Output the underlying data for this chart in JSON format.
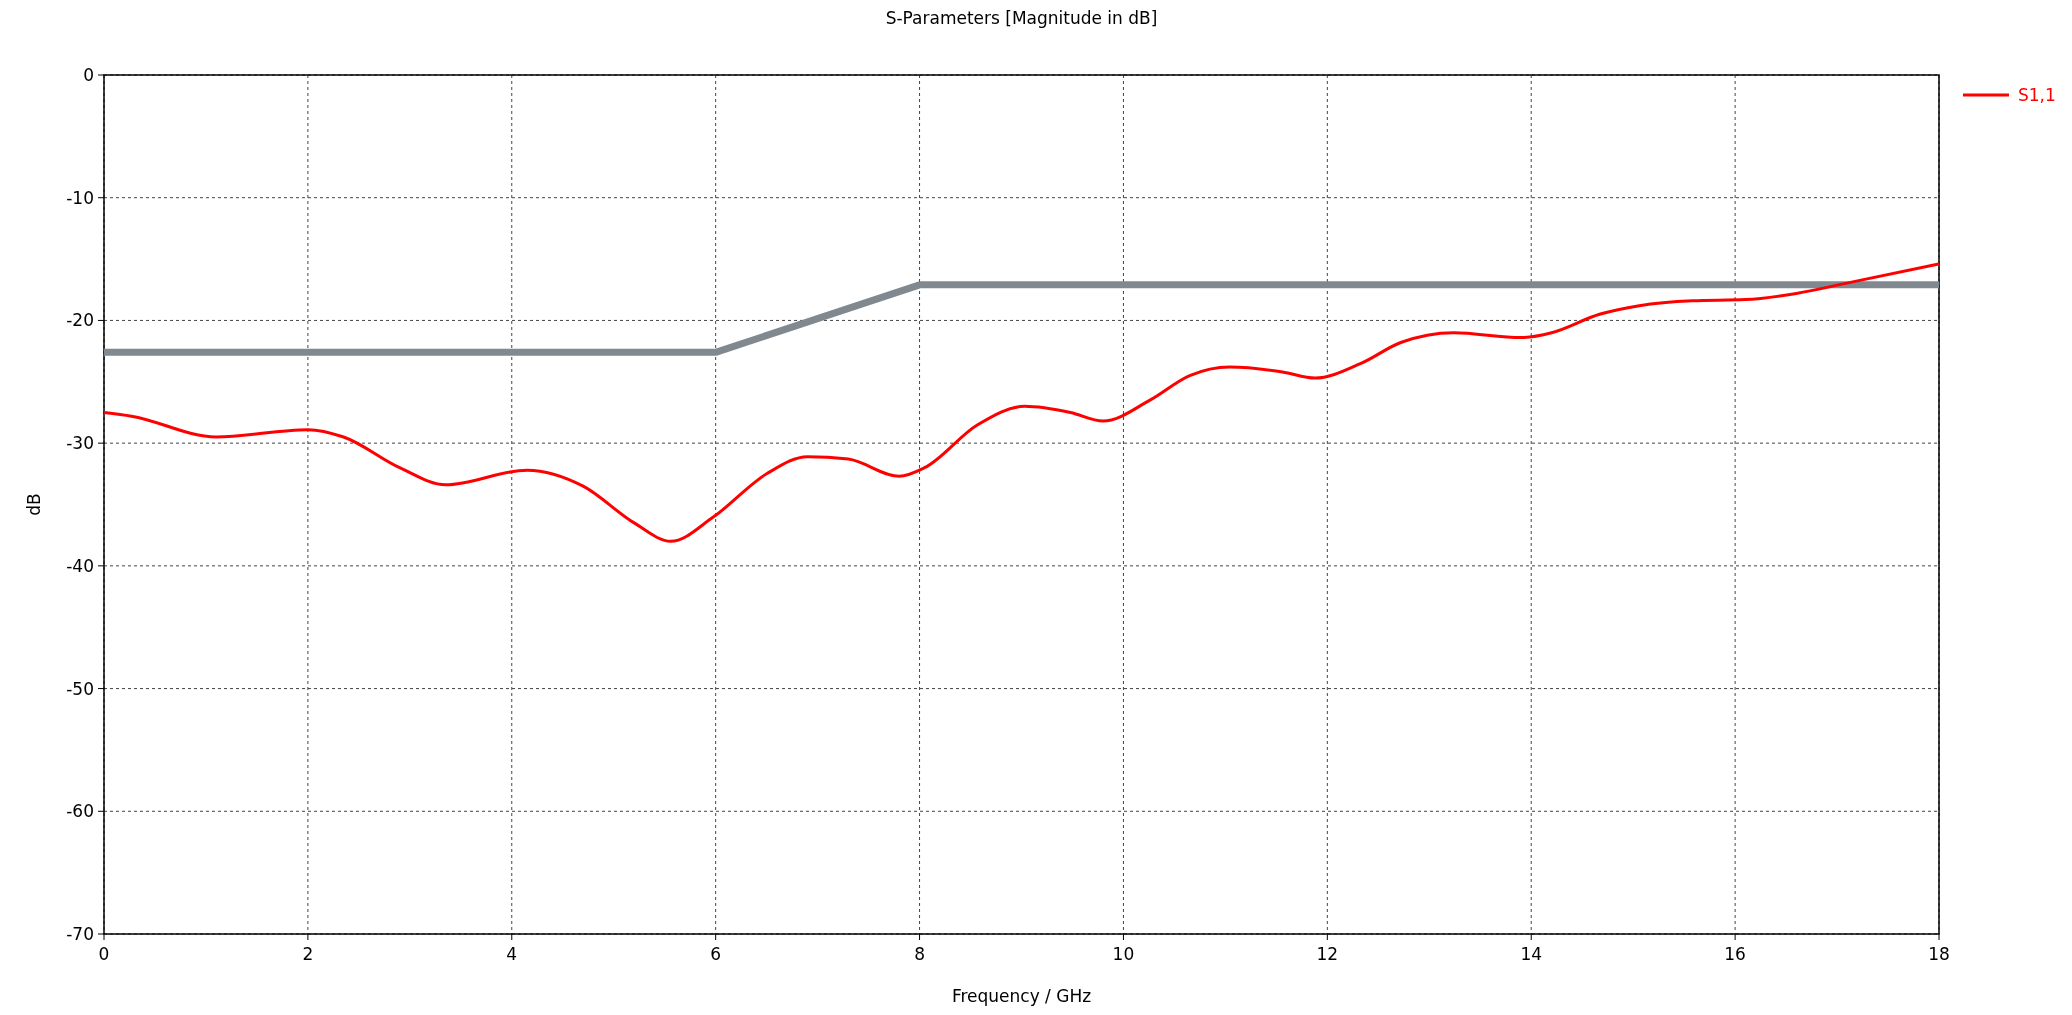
{
  "chart_data": {
    "type": "line",
    "title": "S-Parameters [Magnitude in dB]",
    "xlabel": "Frequency / GHz",
    "ylabel": "dB",
    "xlim": [
      0,
      18
    ],
    "xticks": [
      0,
      2,
      4,
      6,
      8,
      10,
      12,
      14,
      16,
      18
    ],
    "ylim": [
      -70,
      0
    ],
    "yticks": [
      -70,
      -60,
      -50,
      -40,
      -30,
      -20,
      -10,
      0
    ],
    "grid": true,
    "legend": "top right",
    "line_style": "solid",
    "marker": "none",
    "series": [
      {
        "color": "#808890",
        "x": [
          0,
          6,
          8,
          18
        ],
        "values": [
          -22.6,
          -22.6,
          -17.1,
          -17.1
        ]
      },
      {
        "name": "S1,1",
        "color": "#ff0000",
        "x": [
          0,
          0.27,
          1.1,
          2,
          2.35,
          2.9,
          3.35,
          4.15,
          4.7,
          5.2,
          5.56,
          5.98,
          6.5,
          6.9,
          7.3,
          7.8,
          8.05,
          8.57,
          9.03,
          9.48,
          9.8,
          10.26,
          10.65,
          11.04,
          11.56,
          11.88,
          12.33,
          12.72,
          13.24,
          13.9,
          14.2,
          14.67,
          15.06,
          15.58,
          16.1,
          16.6,
          17.13,
          18
        ],
        "values": [
          -27.5,
          -27.8,
          -29.5,
          -28.9,
          -29.5,
          -32,
          -33.4,
          -32.2,
          -33.5,
          -36.5,
          -38,
          -36,
          -32.5,
          -31.1,
          -31.3,
          -32.7,
          -32,
          -28.5,
          -27,
          -27.5,
          -28.2,
          -26.5,
          -24.5,
          -23.8,
          -24.2,
          -24.7,
          -23.5,
          -21.8,
          -21,
          -21.4,
          -21,
          -19.5,
          -18.8,
          -18.4,
          -18.3,
          -17.8,
          -16.9,
          -15.4
        ]
      }
    ]
  }
}
